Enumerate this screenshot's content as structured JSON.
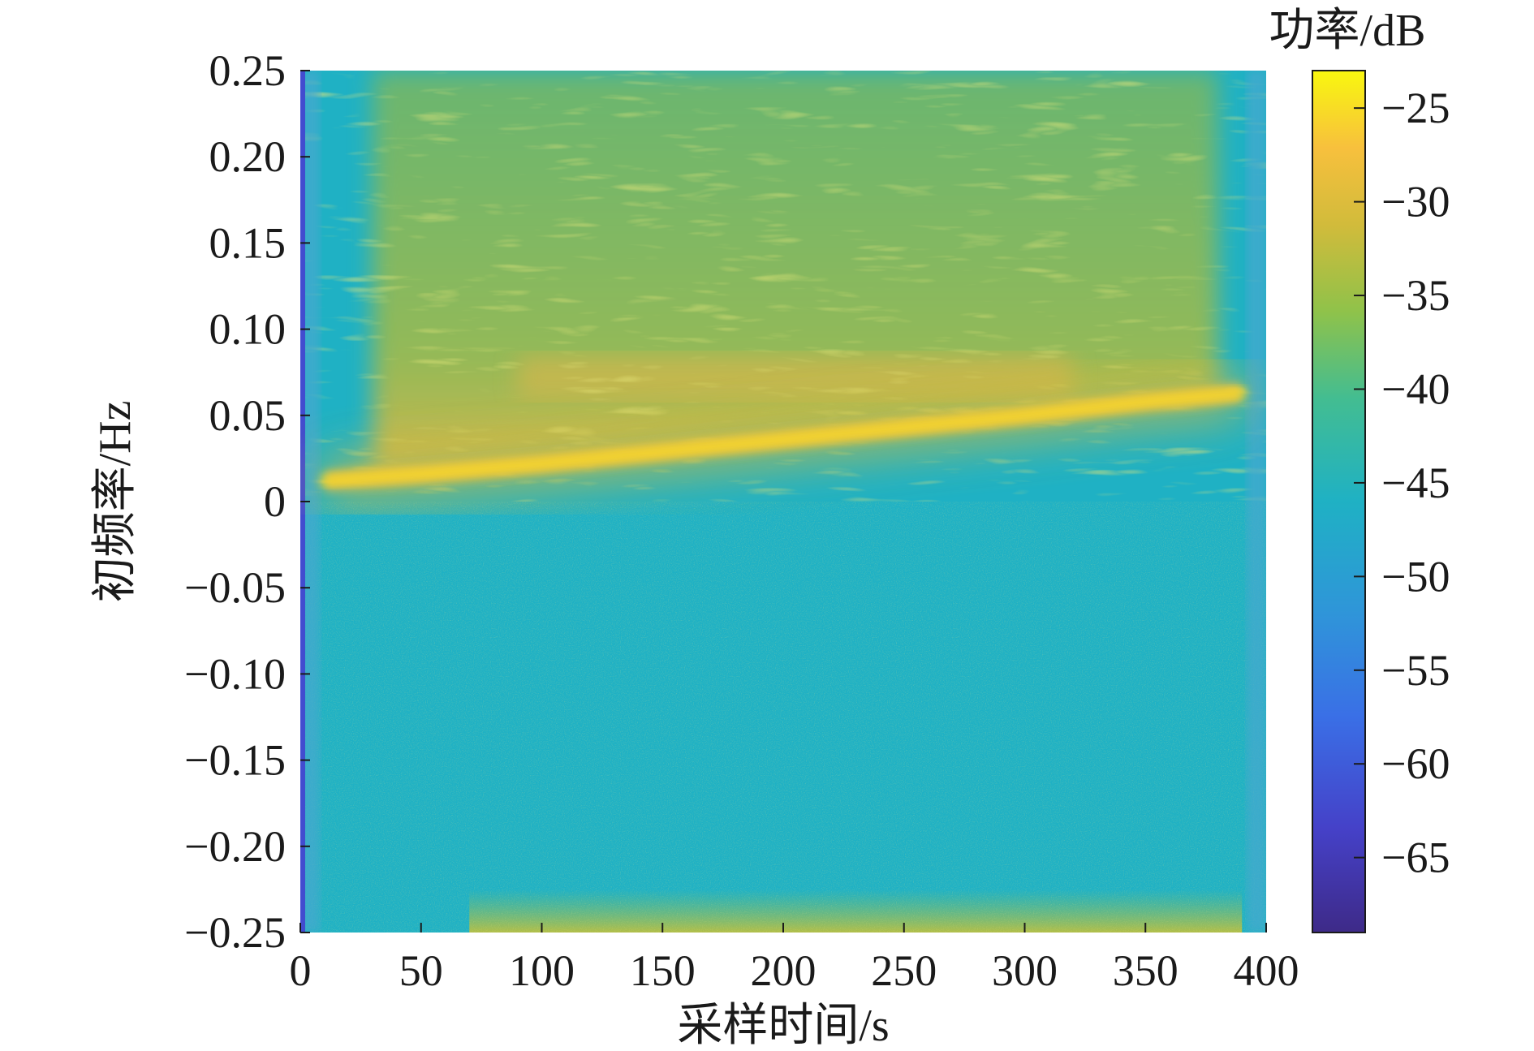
{
  "chart_data": {
    "type": "heatmap",
    "title": "",
    "xlabel": "采样时间/s",
    "ylabel": "初频率/Hz",
    "xlim": [
      0,
      400
    ],
    "ylim": [
      -0.25,
      0.25
    ],
    "x_ticks": [
      0,
      50,
      100,
      150,
      200,
      250,
      300,
      350,
      400
    ],
    "x_tick_labels": [
      "0",
      "50",
      "100",
      "150",
      "200",
      "250",
      "300",
      "350",
      "400"
    ],
    "y_ticks": [
      0.25,
      0.2,
      0.15,
      0.1,
      0.05,
      0,
      -0.05,
      -0.1,
      -0.15,
      -0.2,
      -0.25
    ],
    "y_tick_labels": [
      "0.25",
      "0.20",
      "0.15",
      "0.10",
      "0.05",
      "0",
      "−0.05",
      "−0.10",
      "−0.15",
      "−0.20",
      "−0.25"
    ],
    "ridge": {
      "x": [
        10,
        50,
        100,
        150,
        200,
        250,
        300,
        350,
        390
      ],
      "y": [
        0.012,
        0.016,
        0.022,
        0.029,
        0.036,
        0.043,
        0.05,
        0.058,
        0.063
      ],
      "peak_power_db": -25
    },
    "colorbar": {
      "label": "功率/dB",
      "range": [
        -69,
        -23
      ],
      "ticks": [
        -25,
        -30,
        -35,
        -40,
        -45,
        -50,
        -55,
        -60,
        -65
      ],
      "tick_labels": [
        "−25",
        "−30",
        "−35",
        "−40",
        "−45",
        "−50",
        "−55",
        "−60",
        "−65"
      ],
      "colormap": "parula"
    },
    "background_power_db": -46,
    "upper_region_power_db": -39,
    "grid": false
  }
}
